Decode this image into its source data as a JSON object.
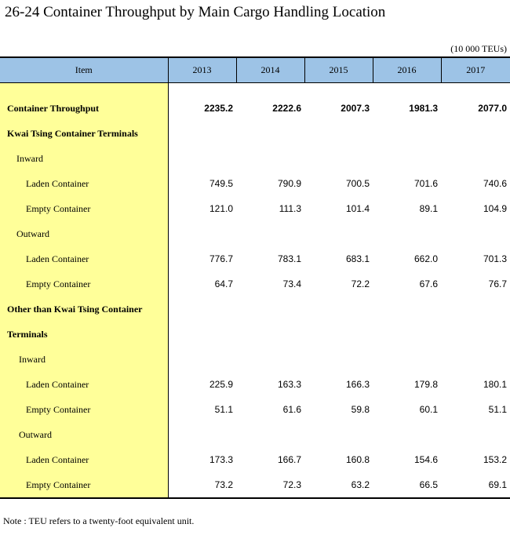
{
  "title": "26-24  Container Throughput by Main Cargo Handling Location",
  "unit": "(10 000 TEUs)",
  "header": {
    "item": "Item",
    "years": [
      "2013",
      "2014",
      "2015",
      "2016",
      "2017"
    ]
  },
  "rows": {
    "total": {
      "label": "Container Throughput",
      "values": [
        "2235.2",
        "2222.6",
        "2007.3",
        "1981.3",
        "2077.0"
      ]
    },
    "kt_title": "Kwai Tsing Container Terminals",
    "kt_inward": "Inward",
    "kt_in_laden": {
      "label": "Laden Container",
      "values": [
        "749.5",
        "790.9",
        "700.5",
        "701.6",
        "740.6"
      ]
    },
    "kt_in_empty": {
      "label": "Empty Container",
      "values": [
        "121.0",
        "111.3",
        "101.4",
        "89.1",
        "104.9"
      ]
    },
    "kt_outward": "Outward",
    "kt_out_laden": {
      "label": "Laden Container",
      "values": [
        "776.7",
        "783.1",
        "683.1",
        "662.0",
        "701.3"
      ]
    },
    "kt_out_empty": {
      "label": "Empty Container",
      "values": [
        "64.7",
        "73.4",
        "72.2",
        "67.6",
        "76.7"
      ]
    },
    "ot_title_1": "Other than Kwai Tsing Container",
    "ot_title_2": "Terminals",
    "ot_inward": "Inward",
    "ot_in_laden": {
      "label": "Laden Container",
      "values": [
        "225.9",
        "163.3",
        "166.3",
        "179.8",
        "180.1"
      ]
    },
    "ot_in_empty": {
      "label": "Empty Container",
      "values": [
        "51.1",
        "61.6",
        "59.8",
        "60.1",
        "51.1"
      ]
    },
    "ot_outward": "Outward",
    "ot_out_laden": {
      "label": "Laden Container",
      "values": [
        "173.3",
        "166.7",
        "160.8",
        "154.6",
        "153.2"
      ]
    },
    "ot_out_empty": {
      "label": "Empty Container",
      "values": [
        "73.2",
        "72.3",
        "63.2",
        "66.5",
        "69.1"
      ]
    }
  },
  "note": "Note : TEU refers to a twenty-foot equivalent unit."
}
